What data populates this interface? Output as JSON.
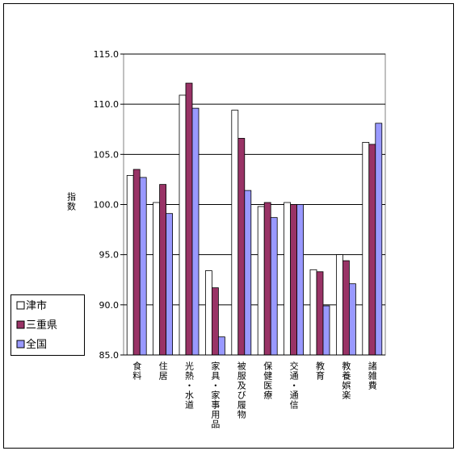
{
  "chart_data": {
    "type": "bar",
    "y_label": "指数",
    "categories": [
      "食料",
      "住居",
      "光熱・水道",
      "家具・家事用品",
      "被服及び履物",
      "保健医療",
      "交通・通信",
      "教育",
      "教養娯楽",
      "諸雑費"
    ],
    "series": [
      {
        "name": "津市",
        "color": "#ffffff",
        "values": [
          102.9,
          100.2,
          110.9,
          93.4,
          109.4,
          99.8,
          100.2,
          93.5,
          95.0,
          106.2
        ]
      },
      {
        "name": "三重県",
        "color": "#993366",
        "values": [
          103.5,
          102.0,
          112.1,
          91.7,
          106.6,
          100.2,
          100.0,
          93.3,
          94.4,
          106.0
        ]
      },
      {
        "name": "全国",
        "color": "#9999ff",
        "values": [
          102.7,
          99.1,
          109.6,
          86.8,
          101.4,
          98.7,
          100.0,
          89.9,
          92.1,
          108.1
        ]
      }
    ],
    "ylim": [
      85,
      115
    ],
    "yticks": [
      {
        "value": 85,
        "label": "85.0"
      },
      {
        "value": 90,
        "label": "90.0"
      },
      {
        "value": 95,
        "label": "95.0"
      },
      {
        "value": 100,
        "label": "100.0"
      },
      {
        "value": 105,
        "label": "105.0"
      },
      {
        "value": 110,
        "label": "110.0"
      },
      {
        "value": 115,
        "label": "115.0"
      }
    ],
    "grid": true
  }
}
